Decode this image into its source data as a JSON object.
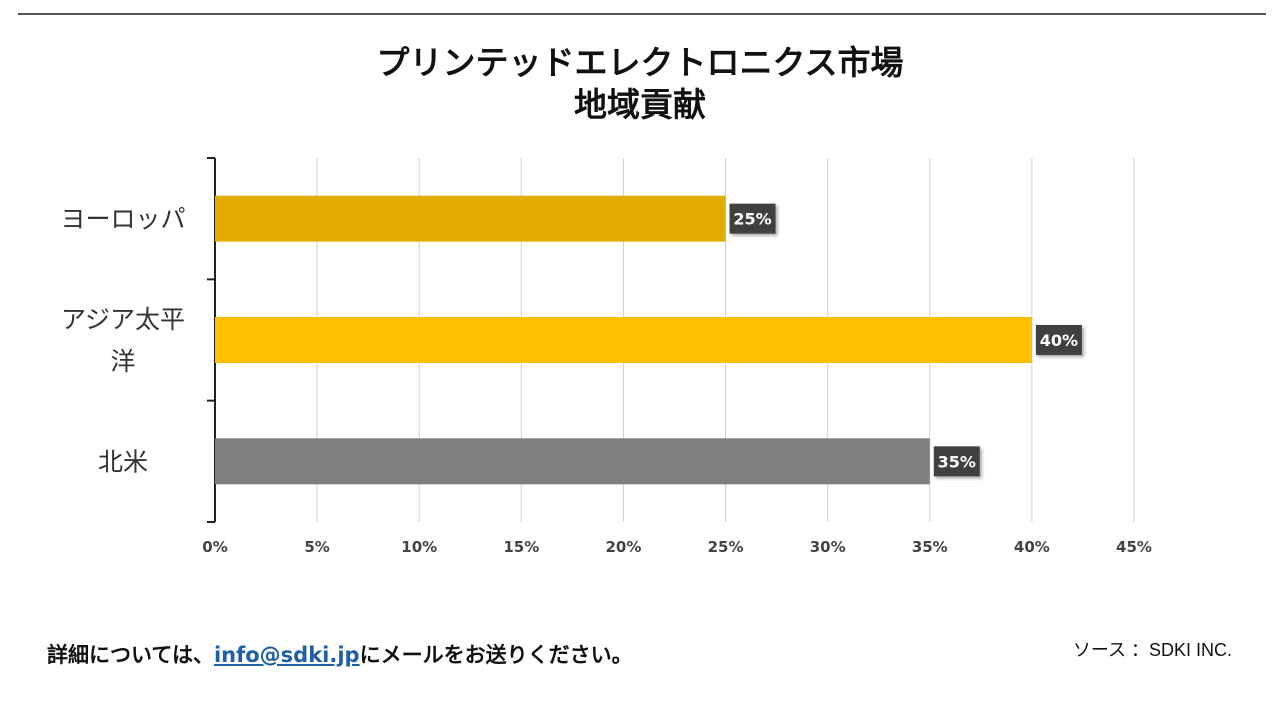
{
  "footer": {
    "contact_prefix": "詳細については、",
    "contact_email": "info@sdki.jp",
    "contact_suffix": "にメールをお送りください。",
    "source": "ソース ：SDKI INC."
  },
  "chart_data": {
    "type": "bar",
    "orientation": "horizontal",
    "title": [
      "プリンテッドエレクトロニクス市場",
      "地域貢献"
    ],
    "categories": [
      "ヨーロッパ",
      "アジア太平洋",
      "北米"
    ],
    "category_lines": [
      [
        "ヨーロッパ"
      ],
      [
        "アジア太平",
        "洋"
      ],
      [
        "北米"
      ]
    ],
    "values": [
      25,
      40,
      35
    ],
    "data_labels": [
      "25%",
      "40%",
      "35%"
    ],
    "bar_colors": [
      "#e2ac00",
      "#ffc000",
      "#7f7f7f"
    ],
    "xlim": [
      0,
      45
    ],
    "xticks": [
      0,
      5,
      10,
      15,
      20,
      25,
      30,
      35,
      40,
      45
    ],
    "xtick_labels": [
      "0%",
      "5%",
      "10%",
      "15%",
      "20%",
      "25%",
      "30%",
      "35%",
      "40%",
      "45%"
    ],
    "grid": true,
    "legend": "none",
    "xlabel": "",
    "ylabel": ""
  }
}
